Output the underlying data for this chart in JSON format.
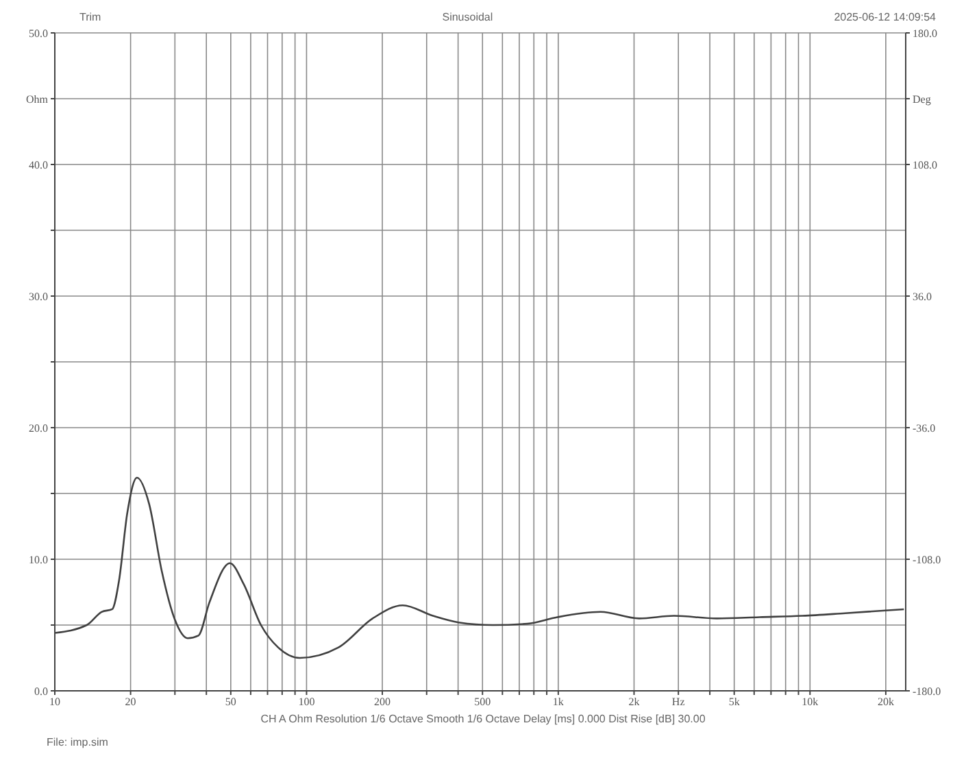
{
  "chart_data": {
    "type": "line",
    "title": "Sinusoidal",
    "annotations": [
      "Trim",
      "2025-06-12 14:09:54",
      "CH A   Ohm   Resolution 1/6 Octave   Smooth 1/6 Octave   Delay [ms] 0.000   Dist Rise [dB] 30.00",
      "File: imp.sim"
    ],
    "series": [
      {
        "color": "#404040",
        "x": [
          10,
          13.4,
          15.35,
          16.9,
          18,
          19.4,
          21.2,
          23.7,
          26.6,
          30,
          33.7,
          37.2,
          41.1,
          49.6,
          56.3,
          65.9,
          77.1,
          94,
          134,
          183,
          241,
          318,
          402,
          550,
          754,
          992,
          1473,
          2096,
          2882,
          4265,
          6300,
          9330,
          13800,
          23600
        ],
        "values": [
          4.4,
          5.0,
          6.0,
          6.2,
          8.4,
          13.5,
          16.2,
          14.2,
          9.1,
          5.4,
          4.0,
          4.2,
          6.7,
          9.7,
          8.1,
          5.0,
          3.3,
          2.5,
          3.3,
          5.5,
          6.5,
          5.7,
          5.2,
          5.0,
          5.1,
          5.6,
          6.0,
          5.5,
          5.7,
          5.5,
          5.6,
          5.7,
          5.9,
          6.2
        ]
      }
    ],
    "xlim": [
      10,
      24000
    ],
    "xticks": [
      10,
      20,
      {
        "value": 30,
        "label": null
      },
      {
        "value": 40,
        "label": null
      },
      50,
      {
        "value": 60,
        "label": null
      },
      {
        "value": 70,
        "label": null
      },
      {
        "value": 80,
        "label": null
      },
      {
        "value": 90,
        "label": null
      },
      100,
      200,
      {
        "value": 300,
        "label": null
      },
      {
        "value": 400,
        "label": null
      },
      500,
      {
        "value": 600,
        "label": null
      },
      {
        "value": 700,
        "label": null
      },
      {
        "value": 800,
        "label": null
      },
      {
        "value": 900,
        "label": null
      },
      {
        "value": 1000,
        "label": "1k"
      },
      {
        "value": 2000,
        "label": "2k"
      },
      {
        "value": 3000,
        "label": "Hz"
      },
      {
        "value": 4000,
        "label": null
      },
      {
        "value": 5000,
        "label": "5k"
      },
      {
        "value": 6000,
        "label": null
      },
      {
        "value": 7000,
        "label": null
      },
      {
        "value": 8000,
        "label": null
      },
      {
        "value": 9000,
        "label": null
      },
      {
        "value": 10000,
        "label": "10k"
      },
      {
        "value": 20000,
        "label": "20k"
      }
    ],
    "ylim": [
      0,
      50
    ],
    "yticks": [
      {
        "value": 0,
        "label": "0.0"
      },
      {
        "value": 5,
        "label": null
      },
      {
        "value": 10,
        "label": "10.0"
      },
      {
        "value": 15,
        "label": null
      },
      {
        "value": 20,
        "label": "20.0"
      },
      {
        "value": 25,
        "label": null
      },
      {
        "value": 30,
        "label": "30.0"
      },
      {
        "value": 35,
        "label": null
      },
      {
        "value": 40,
        "label": "40.0"
      },
      {
        "value": 45,
        "label": "Ohm"
      },
      {
        "value": 50,
        "label": "50.0"
      }
    ],
    "y2lim": [
      -180,
      180
    ],
    "y2ticks": [
      {
        "value": -180,
        "label": "-180.0"
      },
      {
        "value": -108,
        "label": "-108.0"
      },
      {
        "value": -36,
        "label": "-36.0"
      },
      {
        "value": 36,
        "label": "36.0"
      },
      {
        "value": 108,
        "label": "108.0"
      },
      {
        "value": 144,
        "label": "Deg"
      },
      {
        "value": 180,
        "label": "180.0"
      }
    ],
    "grid": true,
    "log": "x",
    "marker": "none",
    "line_style": "solid"
  }
}
